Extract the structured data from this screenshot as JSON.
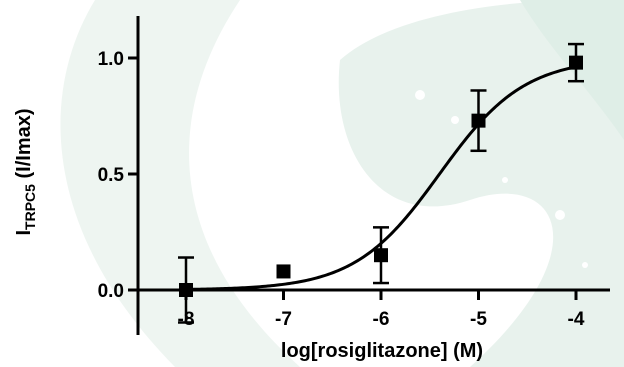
{
  "chart_data": {
    "type": "scatter",
    "xlabel": "log[rosiglitazone] (M)",
    "ylabel": {
      "main": "I",
      "subscript": "TRPC5",
      "suffix": " (I/Imax)"
    },
    "xlim": [
      -8.5,
      -3.5
    ],
    "ylim": [
      -0.2,
      1.15
    ],
    "x_ticks": [
      -8,
      -7,
      -6,
      -5,
      -4
    ],
    "y_ticks": [
      0.0,
      0.5,
      1.0
    ],
    "x_tick_labels": [
      "-8",
      "-7",
      "-6",
      "-5",
      "-4"
    ],
    "y_tick_labels": [
      "0.0",
      "0.5",
      "1.0"
    ],
    "grid": false,
    "points": [
      {
        "x": -8,
        "y": 0.0,
        "err": 0.14
      },
      {
        "x": -7,
        "y": 0.08,
        "err": 0.0
      },
      {
        "x": -6,
        "y": 0.15,
        "err": 0.12
      },
      {
        "x": -5,
        "y": 0.73,
        "err": 0.13
      },
      {
        "x": -4,
        "y": 0.98,
        "err": 0.08
      }
    ],
    "fit": {
      "type": "sigmoidal-dose-response",
      "bottom": 0.0,
      "top": 1.0,
      "log_ec50": -5.4,
      "hill_slope": 1.0
    },
    "colors": {
      "marks": "#000000",
      "watermark": "#e6f1ec"
    }
  }
}
